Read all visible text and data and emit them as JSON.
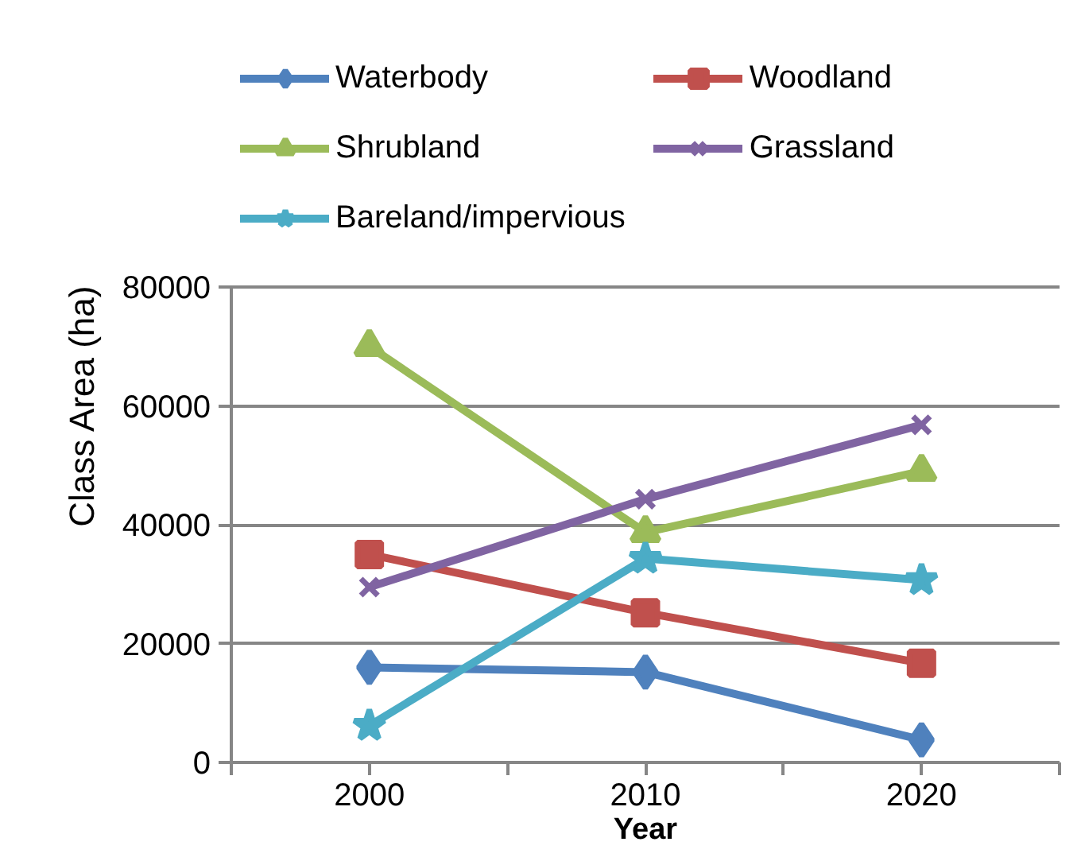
{
  "chart_data": {
    "type": "line",
    "xlabel": "Year",
    "ylabel": "Class Area (ha)",
    "x": [
      2000,
      2010,
      2020
    ],
    "xlim": [
      1995,
      2025
    ],
    "xticks": [
      {
        "value": 1995,
        "label": null
      },
      2000,
      {
        "value": 2005,
        "label": null
      },
      2010,
      {
        "value": 2015,
        "label": null
      },
      2020,
      {
        "value": 2025,
        "label": null
      }
    ],
    "ylim": [
      0,
      80000
    ],
    "yticks": [
      0,
      20000,
      40000,
      60000,
      80000
    ],
    "grid": "y",
    "legend": "top",
    "line_style": "solid",
    "series": [
      {
        "name": "Waterbody",
        "color": "#4f81bd",
        "marker": "diamond",
        "values": [
          16000,
          15200,
          3800
        ]
      },
      {
        "name": "Woodland",
        "color": "#c0504d",
        "marker": "square",
        "values": [
          35000,
          25200,
          16700
        ]
      },
      {
        "name": "Shrubland",
        "color": "#9bbb59",
        "marker": "triangle",
        "values": [
          70000,
          38700,
          49000
        ]
      },
      {
        "name": "Grassland",
        "color": "#8064a2",
        "marker": "cross",
        "values": [
          29500,
          44300,
          56800
        ]
      },
      {
        "name": "Bareland/impervious",
        "color": "#4bacc6",
        "marker": "star",
        "values": [
          6200,
          34300,
          30700
        ]
      }
    ]
  }
}
